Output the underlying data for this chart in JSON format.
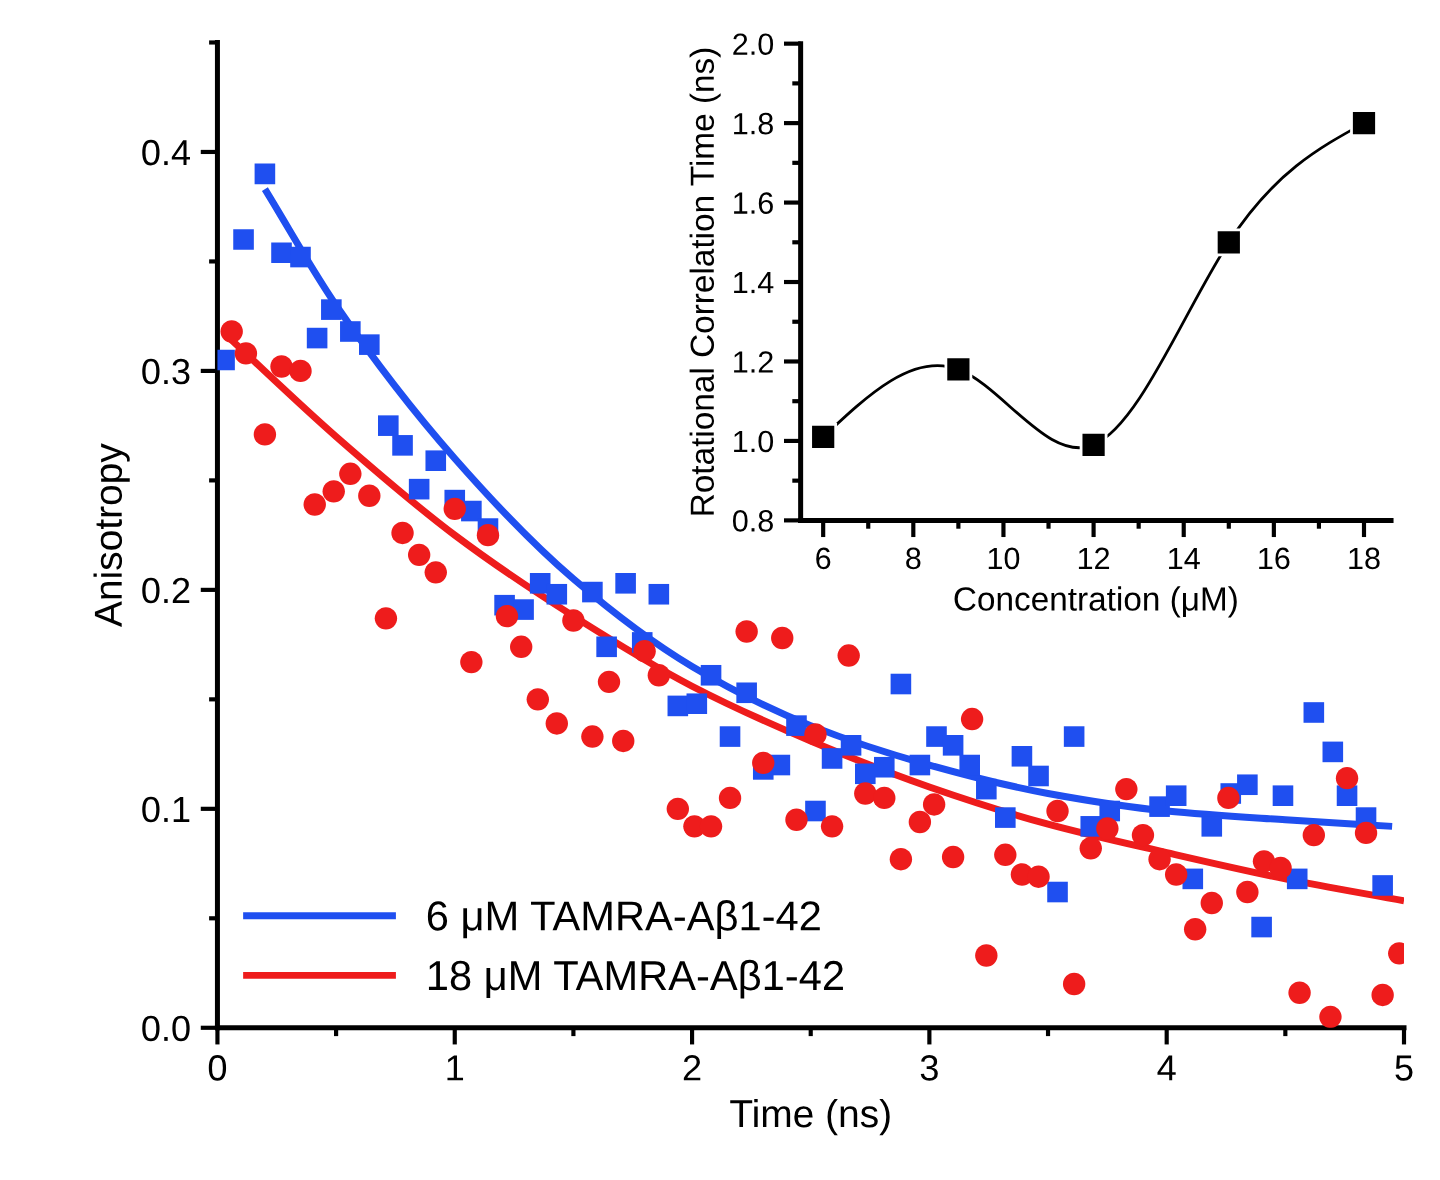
{
  "chart_data": [
    {
      "type": "scatter",
      "xlabel": "Time (ns)",
      "ylabel": "Anisotropy",
      "xlim": [
        0,
        5
      ],
      "ylim": [
        0,
        0.45
      ],
      "xticks": [
        0,
        1,
        2,
        3,
        4,
        5
      ],
      "yticks": [
        {
          "value": 0,
          "label": "0.0"
        },
        0.1,
        0.2,
        0.3,
        0.4
      ],
      "legend": "bottom left",
      "grid": false,
      "series": [
        {
          "type": "scatter",
          "marker": "square",
          "color": "#1f4ff0",
          "x": [
            0.03,
            0.11,
            0.2,
            0.27,
            0.35,
            0.42,
            0.48,
            0.56,
            0.64,
            0.72,
            0.78,
            0.85,
            0.92,
            1.0,
            1.07,
            1.14,
            1.21,
            1.29,
            1.36,
            1.43,
            1.58,
            1.64,
            1.72,
            1.79,
            1.86,
            1.94,
            2.02,
            2.08,
            2.16,
            2.23,
            2.3,
            2.37,
            2.44,
            2.52,
            2.59,
            2.67,
            2.73,
            2.81,
            2.88,
            2.96,
            3.03,
            3.1,
            3.17,
            3.24,
            3.32,
            3.39,
            3.46,
            3.54,
            3.61,
            3.68,
            3.76,
            3.83,
            3.9,
            3.97,
            4.04,
            4.11,
            4.19,
            4.27,
            4.34,
            4.4,
            4.49,
            4.55,
            4.62,
            4.7,
            4.76,
            4.84,
            4.91
          ],
          "values": [
            0.305,
            0.36,
            0.39,
            0.354,
            0.352,
            0.315,
            0.328,
            0.318,
            0.312,
            0.275,
            0.266,
            0.246,
            0.259,
            0.241,
            0.236,
            0.228,
            0.193,
            0.191,
            0.203,
            0.198,
            0.199,
            0.174,
            0.203,
            0.176,
            0.198,
            0.147,
            0.148,
            0.161,
            0.133,
            0.153,
            0.118,
            0.12,
            0.138,
            0.099,
            0.123,
            0.129,
            0.116,
            0.119,
            0.157,
            0.12,
            0.133,
            0.129,
            0.12,
            0.109,
            0.096,
            0.124,
            0.115,
            0.062,
            0.133,
            0.092,
            0.099,
            null,
            null,
            0.101,
            0.106,
            0.068,
            0.092,
            0.107,
            0.111,
            0.046,
            0.106,
            0.068,
            0.144,
            0.126,
            0.106,
            0.096,
            0.065
          ]
        },
        {
          "type": "scatter",
          "marker": "circle",
          "color": "#ee1c1c",
          "x": [
            0.06,
            0.12,
            0.2,
            0.27,
            0.35,
            0.41,
            0.49,
            0.56,
            0.64,
            0.71,
            0.78,
            0.85,
            0.92,
            1.0,
            1.07,
            1.14,
            1.22,
            1.28,
            1.35,
            1.43,
            1.5,
            1.58,
            1.65,
            1.71,
            1.8,
            1.86,
            1.94,
            2.01,
            2.08,
            2.16,
            2.23,
            2.3,
            2.38,
            2.44,
            2.52,
            2.59,
            2.66,
            2.73,
            2.81,
            2.88,
            2.96,
            3.02,
            3.1,
            3.18,
            3.24,
            3.32,
            3.39,
            3.46,
            3.54,
            3.61,
            3.68,
            3.75,
            3.83,
            3.9,
            3.97,
            4.04,
            4.12,
            4.19,
            4.26,
            4.34,
            4.41,
            4.48,
            4.56,
            4.62,
            4.69,
            4.76,
            4.84,
            4.91,
            4.98
          ],
          "values": [
            0.318,
            0.308,
            0.271,
            0.302,
            0.3,
            0.239,
            0.245,
            0.253,
            0.243,
            0.187,
            0.226,
            0.216,
            0.208,
            0.237,
            0.167,
            0.225,
            0.188,
            0.174,
            0.15,
            0.139,
            0.186,
            0.133,
            0.158,
            0.131,
            0.172,
            0.161,
            0.1,
            0.092,
            0.092,
            0.105,
            0.181,
            0.121,
            0.178,
            0.095,
            0.134,
            0.092,
            0.17,
            0.107,
            0.105,
            0.077,
            0.094,
            0.102,
            0.078,
            0.141,
            0.033,
            0.079,
            0.07,
            0.069,
            0.099,
            0.02,
            0.082,
            0.091,
            0.109,
            0.088,
            0.077,
            0.07,
            0.045,
            0.057,
            0.105,
            0.062,
            0.076,
            0.073,
            0.016,
            0.088,
            0.005,
            0.114,
            0.089,
            0.015,
            0.034
          ]
        },
        {
          "type": "line",
          "name": "6 μM TAMRA-Aβ1-42",
          "color": "#1f4ff0",
          "x": [
            0.2,
            0.5,
            1.0,
            1.5,
            2.0,
            2.5,
            3.0,
            3.5,
            4.0,
            4.5,
            4.95
          ],
          "values": [
            0.383,
            0.33,
            0.26,
            0.205,
            0.165,
            0.138,
            0.12,
            0.107,
            0.099,
            0.095,
            0.092
          ]
        },
        {
          "type": "line",
          "name": "18 μM TAMRA-Aβ1-42",
          "color": "#ee1c1c",
          "x": [
            0.05,
            0.5,
            1.0,
            1.5,
            2.0,
            2.5,
            3.0,
            3.5,
            4.0,
            4.5,
            5.0
          ],
          "values": [
            0.315,
            0.27,
            0.225,
            0.188,
            0.156,
            0.131,
            0.11,
            0.093,
            0.08,
            0.068,
            0.058
          ]
        }
      ]
    },
    {
      "type": "line",
      "xlabel": "Concentration (μM)",
      "ylabel": "Rotational Correlation Time (ns)",
      "xlim": [
        5.5,
        18.6
      ],
      "ylim": [
        0.8,
        2.0
      ],
      "xticks": [
        6,
        8,
        10,
        12,
        14,
        16,
        18
      ],
      "yticks": [
        0.8,
        {
          "value": 1,
          "label": "1.0"
        },
        1.2,
        1.4,
        1.6,
        1.8,
        {
          "value": 2,
          "label": "2.0"
        }
      ],
      "grid": false,
      "marker": "square",
      "series": [
        {
          "color": "#000000",
          "x": [
            6,
            9,
            12,
            15,
            18
          ],
          "values": [
            1.01,
            1.18,
            0.99,
            1.5,
            1.8
          ]
        }
      ]
    }
  ]
}
